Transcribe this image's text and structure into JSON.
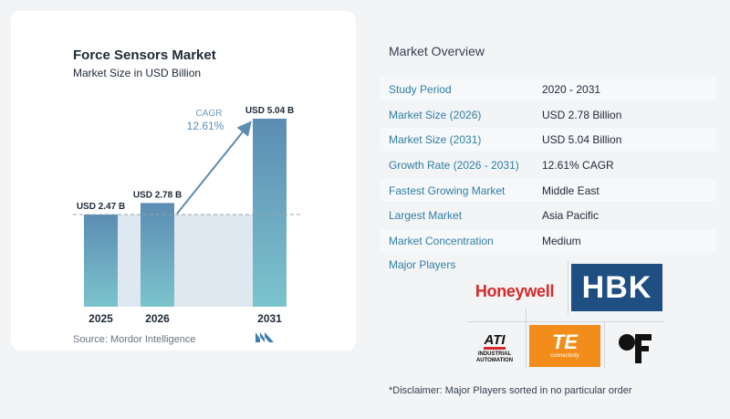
{
  "chart_data": {
    "type": "bar",
    "title": "Force Sensors Market",
    "subtitle": "Market Size in USD Billion",
    "categories": [
      "2025",
      "2026",
      "2031"
    ],
    "values": [
      2.47,
      2.78,
      5.04
    ],
    "data_labels": [
      "USD 2.47 B",
      "USD 2.78 B",
      "USD 5.04 B"
    ],
    "unit": "USD Billion",
    "ylim": [
      0,
      5.04
    ],
    "grid": false,
    "annotation": {
      "label": "CAGR",
      "value": "12.61%"
    },
    "colors": {
      "bar_top": "#5b8db3",
      "bar_bottom": "#7cc4cd",
      "band": "#dde8f1",
      "arrow": "#5b8db3",
      "dashed": "#9aa3ad"
    }
  },
  "source": "Source:  Mordor Intelligence",
  "overview": {
    "title": "Market Overview",
    "rows": [
      {
        "label": "Study Period",
        "value": "2020 - 2031"
      },
      {
        "label": "Market Size (2026)",
        "value": "USD 2.78 Billion"
      },
      {
        "label": "Market Size (2031)",
        "value": "USD 5.04 Billion"
      },
      {
        "label": "Growth Rate (2026 - 2031)",
        "value": "12.61% CAGR"
      },
      {
        "label": "Fastest Growing Market",
        "value": "Middle East"
      },
      {
        "label": "Largest Market",
        "value": "Asia Pacific"
      },
      {
        "label": "Market Concentration",
        "value": "Medium"
      }
    ]
  },
  "players": {
    "title": "Major Players",
    "honeywell": "Honeywell",
    "hbk": "HBK",
    "ati_main": "ATI",
    "ati_sub": "INDUSTRIAL AUTOMATION",
    "te_main": "TE",
    "te_sub": "connectivity",
    "ff_icon": "futek-f-icon"
  },
  "disclaimer": "*Disclaimer: Major Players sorted in no particular order"
}
